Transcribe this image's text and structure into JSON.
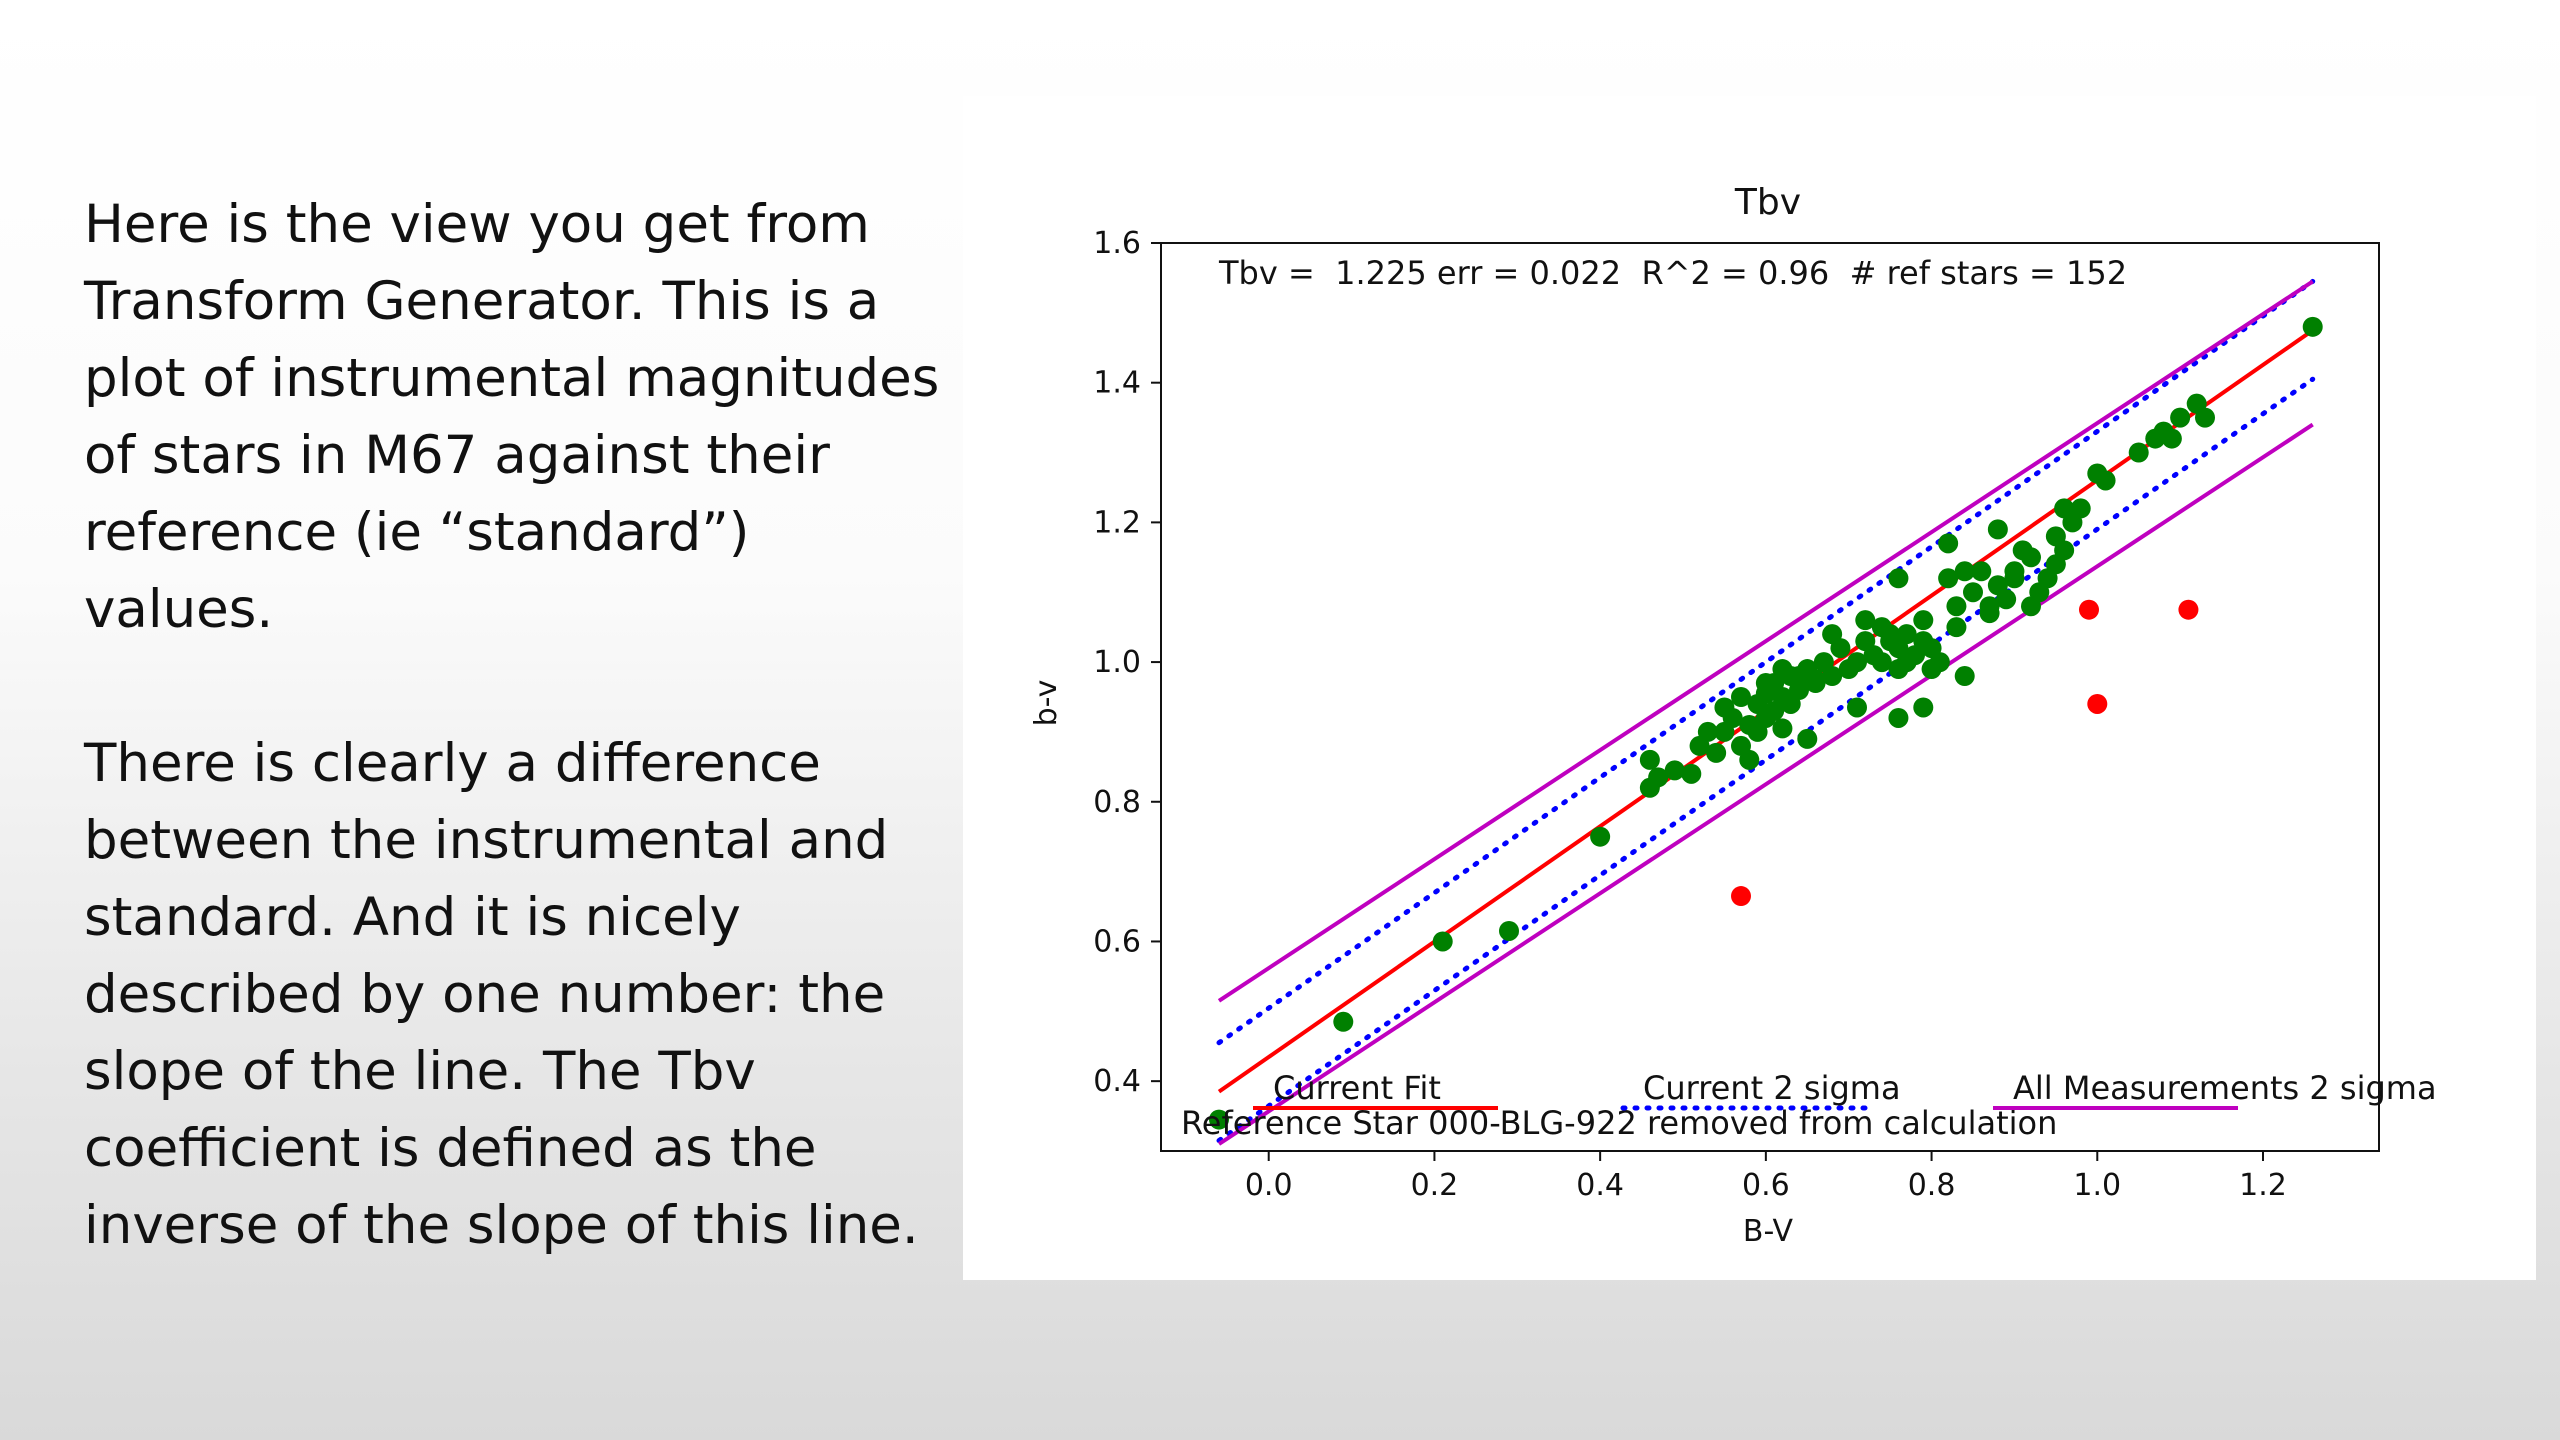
{
  "slide": {
    "paragraph_1": "Here is the view you get from Transform Generator. This is a plot of instrumental magnitudes of stars in M67 against their reference (ie “standard”) values.",
    "paragraph_2": "There is clearly a difference between the instrumental and standard. And it is nicely described by one number: the slope of the line. The Tbv coefficient is defined as the inverse of the slope of this line."
  },
  "chart_data": {
    "type": "scatter",
    "title": "Tbv",
    "xlabel": "B-V",
    "ylabel": "b-v",
    "xlim": [
      -0.13,
      1.34
    ],
    "ylim": [
      0.3,
      1.6
    ],
    "xticks": [
      "0.0",
      "0.2",
      "0.4",
      "0.6",
      "0.8",
      "1.0",
      "1.2"
    ],
    "yticks": [
      "0.4",
      "0.6",
      "0.8",
      "1.0",
      "1.2",
      "1.4",
      "1.6"
    ],
    "grid": false,
    "stats_text": "Tbv =  1.225 err = 0.022  R^2 = 0.96  # ref stars = 152",
    "note_text": "Reference Star 000-BLG-922 removed from calculation",
    "legend_placement": "bottom",
    "legend": [
      {
        "label": "Current Fit",
        "color": "#ff0000",
        "style": "solid"
      },
      {
        "label": "Current 2 sigma",
        "color": "#0000ff",
        "style": "dotted"
      },
      {
        "label": "All Measurements 2 sigma",
        "color": "#bf00bf",
        "style": "solid"
      }
    ],
    "lines": [
      {
        "name": "Current Fit",
        "color": "#ff0000",
        "style": "solid",
        "x": [
          -0.06,
          1.26
        ],
        "y": [
          0.385,
          1.475
        ]
      },
      {
        "name": "Current 2 sigma",
        "color": "#0000ff",
        "style": "dotted",
        "x": [
          -0.06,
          1.26
        ],
        "y": [
          0.455,
          1.545
        ]
      },
      {
        "name": "Current 2 sigma",
        "color": "#0000ff",
        "style": "dotted",
        "x": [
          -0.06,
          1.26
        ],
        "y": [
          0.315,
          1.405
        ]
      },
      {
        "name": "All Measurements 2 sigma",
        "color": "#bf00bf",
        "style": "solid",
        "x": [
          -0.06,
          1.26
        ],
        "y": [
          0.515,
          1.545
        ]
      },
      {
        "name": "All Measurements 2 sigma",
        "color": "#bf00bf",
        "style": "solid",
        "x": [
          -0.06,
          1.26
        ],
        "y": [
          0.31,
          1.34
        ]
      }
    ],
    "series": [
      {
        "color": "#008000",
        "points": [
          [
            -0.06,
            0.345
          ],
          [
            0.09,
            0.485
          ],
          [
            0.21,
            0.6
          ],
          [
            0.29,
            0.615
          ],
          [
            0.4,
            0.75
          ],
          [
            0.46,
            0.82
          ],
          [
            0.46,
            0.86
          ],
          [
            0.47,
            0.835
          ],
          [
            0.49,
            0.845
          ],
          [
            0.51,
            0.84
          ],
          [
            0.52,
            0.88
          ],
          [
            0.53,
            0.9
          ],
          [
            0.54,
            0.87
          ],
          [
            0.55,
            0.9
          ],
          [
            0.55,
            0.935
          ],
          [
            0.56,
            0.92
          ],
          [
            0.57,
            0.95
          ],
          [
            0.57,
            0.88
          ],
          [
            0.58,
            0.86
          ],
          [
            0.58,
            0.91
          ],
          [
            0.59,
            0.94
          ],
          [
            0.59,
            0.9
          ],
          [
            0.6,
            0.955
          ],
          [
            0.6,
            0.92
          ],
          [
            0.61,
            0.97
          ],
          [
            0.61,
            0.93
          ],
          [
            0.62,
            0.95
          ],
          [
            0.62,
            0.905
          ],
          [
            0.63,
            0.98
          ],
          [
            0.63,
            0.94
          ],
          [
            0.64,
            0.96
          ],
          [
            0.65,
            0.99
          ],
          [
            0.65,
            0.89
          ],
          [
            0.66,
            0.975
          ],
          [
            0.67,
            1.0
          ],
          [
            0.68,
            0.98
          ],
          [
            0.69,
            1.02
          ],
          [
            0.7,
            0.99
          ],
          [
            0.71,
            1.0
          ],
          [
            0.71,
            0.935
          ],
          [
            0.72,
            1.03
          ],
          [
            0.73,
            1.01
          ],
          [
            0.74,
            1.05
          ],
          [
            0.74,
            1.0
          ],
          [
            0.75,
            1.03
          ],
          [
            0.76,
            1.02
          ],
          [
            0.76,
            0.99
          ],
          [
            0.77,
            1.04
          ],
          [
            0.77,
            1.0
          ],
          [
            0.78,
            1.01
          ],
          [
            0.79,
            1.06
          ],
          [
            0.79,
            1.03
          ],
          [
            0.8,
            1.02
          ],
          [
            0.8,
            0.99
          ],
          [
            0.81,
            1.0
          ],
          [
            0.82,
            1.12
          ],
          [
            0.76,
            0.92
          ],
          [
            0.79,
            0.935
          ],
          [
            0.84,
            0.98
          ],
          [
            0.83,
            1.08
          ],
          [
            0.85,
            1.1
          ],
          [
            0.86,
            1.13
          ],
          [
            0.87,
            1.07
          ],
          [
            0.88,
            1.11
          ],
          [
            0.88,
            1.19
          ],
          [
            0.89,
            1.09
          ],
          [
            0.9,
            1.13
          ],
          [
            0.91,
            1.16
          ],
          [
            0.92,
            1.08
          ],
          [
            0.93,
            1.1
          ],
          [
            0.94,
            1.12
          ],
          [
            0.95,
            1.14
          ],
          [
            0.96,
            1.16
          ],
          [
            0.97,
            1.2
          ],
          [
            0.98,
            1.22
          ],
          [
            1.0,
            1.27
          ],
          [
            1.01,
            1.26
          ],
          [
            1.05,
            1.3
          ],
          [
            1.07,
            1.32
          ],
          [
            1.08,
            1.33
          ],
          [
            1.09,
            1.32
          ],
          [
            1.1,
            1.35
          ],
          [
            1.12,
            1.37
          ],
          [
            1.13,
            1.35
          ],
          [
            0.96,
            1.22
          ],
          [
            0.82,
            1.17
          ],
          [
            0.84,
            1.13
          ],
          [
            0.83,
            1.05
          ],
          [
            0.87,
            1.08
          ],
          [
            0.9,
            1.12
          ],
          [
            0.92,
            1.15
          ],
          [
            0.95,
            1.18
          ],
          [
            0.76,
            1.12
          ],
          [
            0.75,
            1.04
          ],
          [
            0.72,
            1.06
          ],
          [
            0.68,
            1.04
          ],
          [
            0.66,
            0.97
          ],
          [
            0.64,
            0.98
          ],
          [
            0.62,
            0.99
          ],
          [
            0.6,
            0.97
          ],
          [
            1.26,
            1.48
          ]
        ]
      },
      {
        "color": "#ff0000",
        "points": [
          [
            0.57,
            0.665
          ],
          [
            0.99,
            1.075
          ],
          [
            1.0,
            0.94
          ],
          [
            1.11,
            1.075
          ]
        ]
      }
    ]
  }
}
